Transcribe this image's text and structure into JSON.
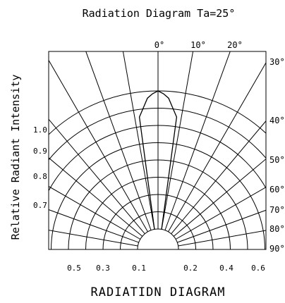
{
  "title": "Radiation Diagram  Ta=25°",
  "caption": "RADIATIDN DIAGRAM",
  "chart_data": {
    "type": "polar",
    "title": "Radiation Diagram  Ta=25°",
    "xlabel": "RADIATIDN DIAGRAM",
    "ylabel": "Relative Radiant Intensity",
    "angle_labels_top": [
      "0°",
      "10°",
      "20°"
    ],
    "angle_labels_right": [
      "30°",
      "40°",
      "50°",
      "60°",
      "70°",
      "80°",
      "90°"
    ],
    "angle_ticks_deg": [
      0,
      10,
      20,
      30,
      40,
      50,
      60,
      70,
      80,
      90
    ],
    "radial_labels_left": [
      "1.0",
      "0.9",
      "0.8",
      "0.7"
    ],
    "radial_values_left": [
      1.0,
      0.9,
      0.8,
      0.7
    ],
    "bottom_labels": [
      "0.5",
      "0.3",
      "0.1",
      "0.2",
      "0.4",
      "0.6"
    ],
    "bottom_values": [
      -0.5,
      -0.3,
      -0.1,
      0.2,
      0.4,
      0.6
    ],
    "grid_circles": [
      0.2,
      0.3,
      0.4,
      0.5,
      0.6,
      0.7,
      0.8,
      0.9,
      1.0
    ],
    "pattern": {
      "angles_deg": [
        0,
        2,
        4,
        6,
        8,
        10
      ],
      "intensity": [
        1.0,
        0.98,
        0.95,
        0.88,
        0.82,
        0.0
      ]
    },
    "grid": true
  }
}
